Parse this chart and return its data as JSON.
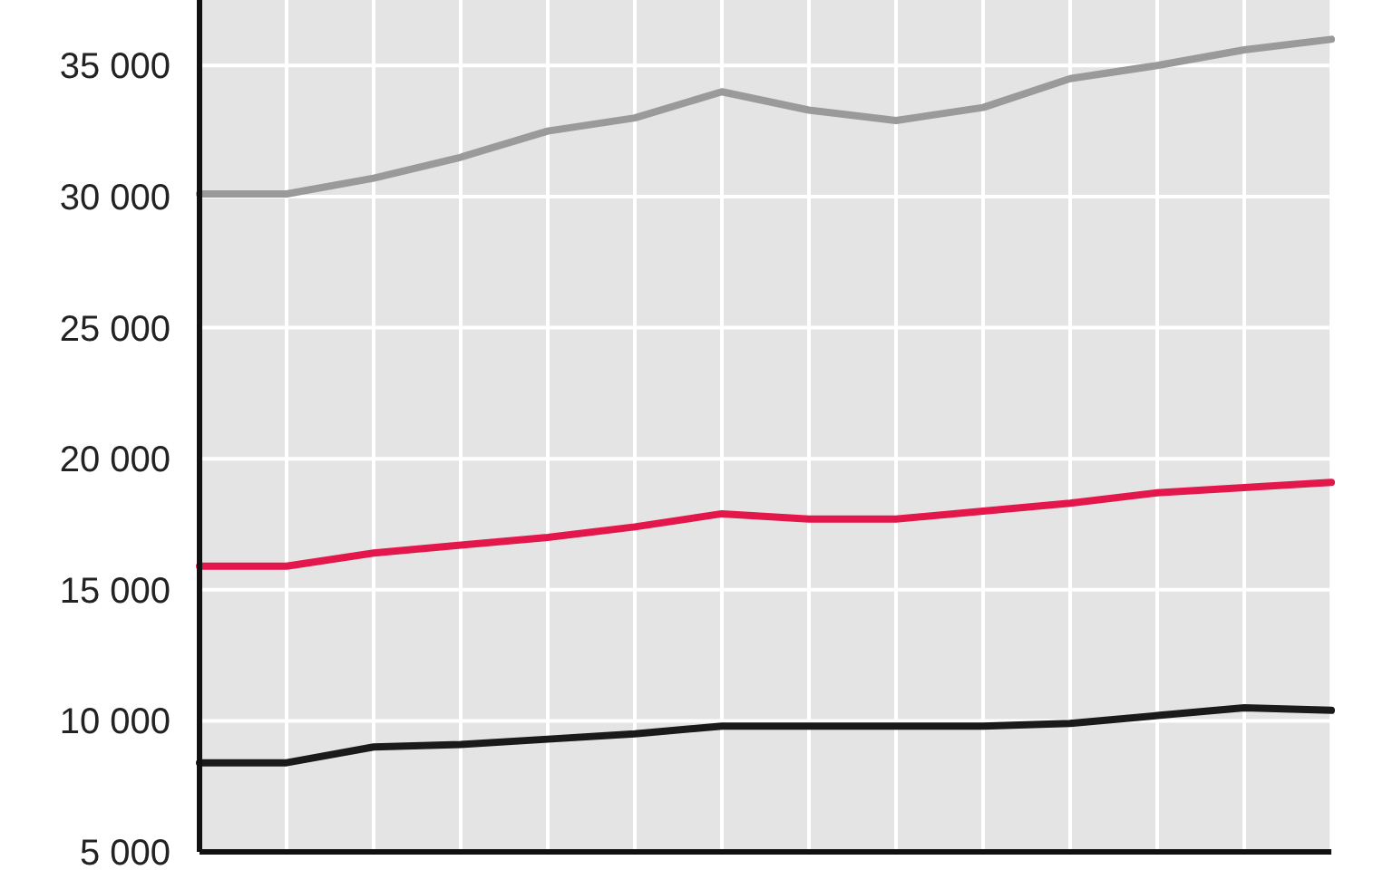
{
  "chart_data": {
    "type": "line",
    "categories": [
      null,
      null,
      null,
      null,
      null,
      null,
      null,
      null,
      null,
      null,
      null,
      null,
      null,
      null
    ],
    "series": [
      {
        "color": "#9a9a9a",
        "values": [
          30100,
          30100,
          30700,
          31500,
          32500,
          33000,
          34000,
          33300,
          32900,
          33400,
          34500,
          35000,
          35600,
          36000
        ]
      },
      {
        "color": "#e3174b",
        "values": [
          15900,
          15900,
          16400,
          16700,
          17000,
          17400,
          17900,
          17700,
          17700,
          18000,
          18300,
          18700,
          18900,
          19100
        ]
      },
      {
        "color": "#1a1a1a",
        "values": [
          8400,
          8400,
          9000,
          9100,
          9300,
          9500,
          9800,
          9800,
          9800,
          9800,
          9900,
          10200,
          10500,
          10400
        ]
      }
    ],
    "ylim": [
      5000,
      37500
    ],
    "yticks": [
      {
        "value": 5000,
        "label": "5 000"
      },
      {
        "value": 10000,
        "label": "10 000"
      },
      {
        "value": 15000,
        "label": "15 000"
      },
      {
        "value": 20000,
        "label": "20 000"
      },
      {
        "value": 25000,
        "label": "25 000"
      },
      {
        "value": 30000,
        "label": "30 000"
      },
      {
        "value": 35000,
        "label": "35 000"
      }
    ],
    "grid": true
  }
}
